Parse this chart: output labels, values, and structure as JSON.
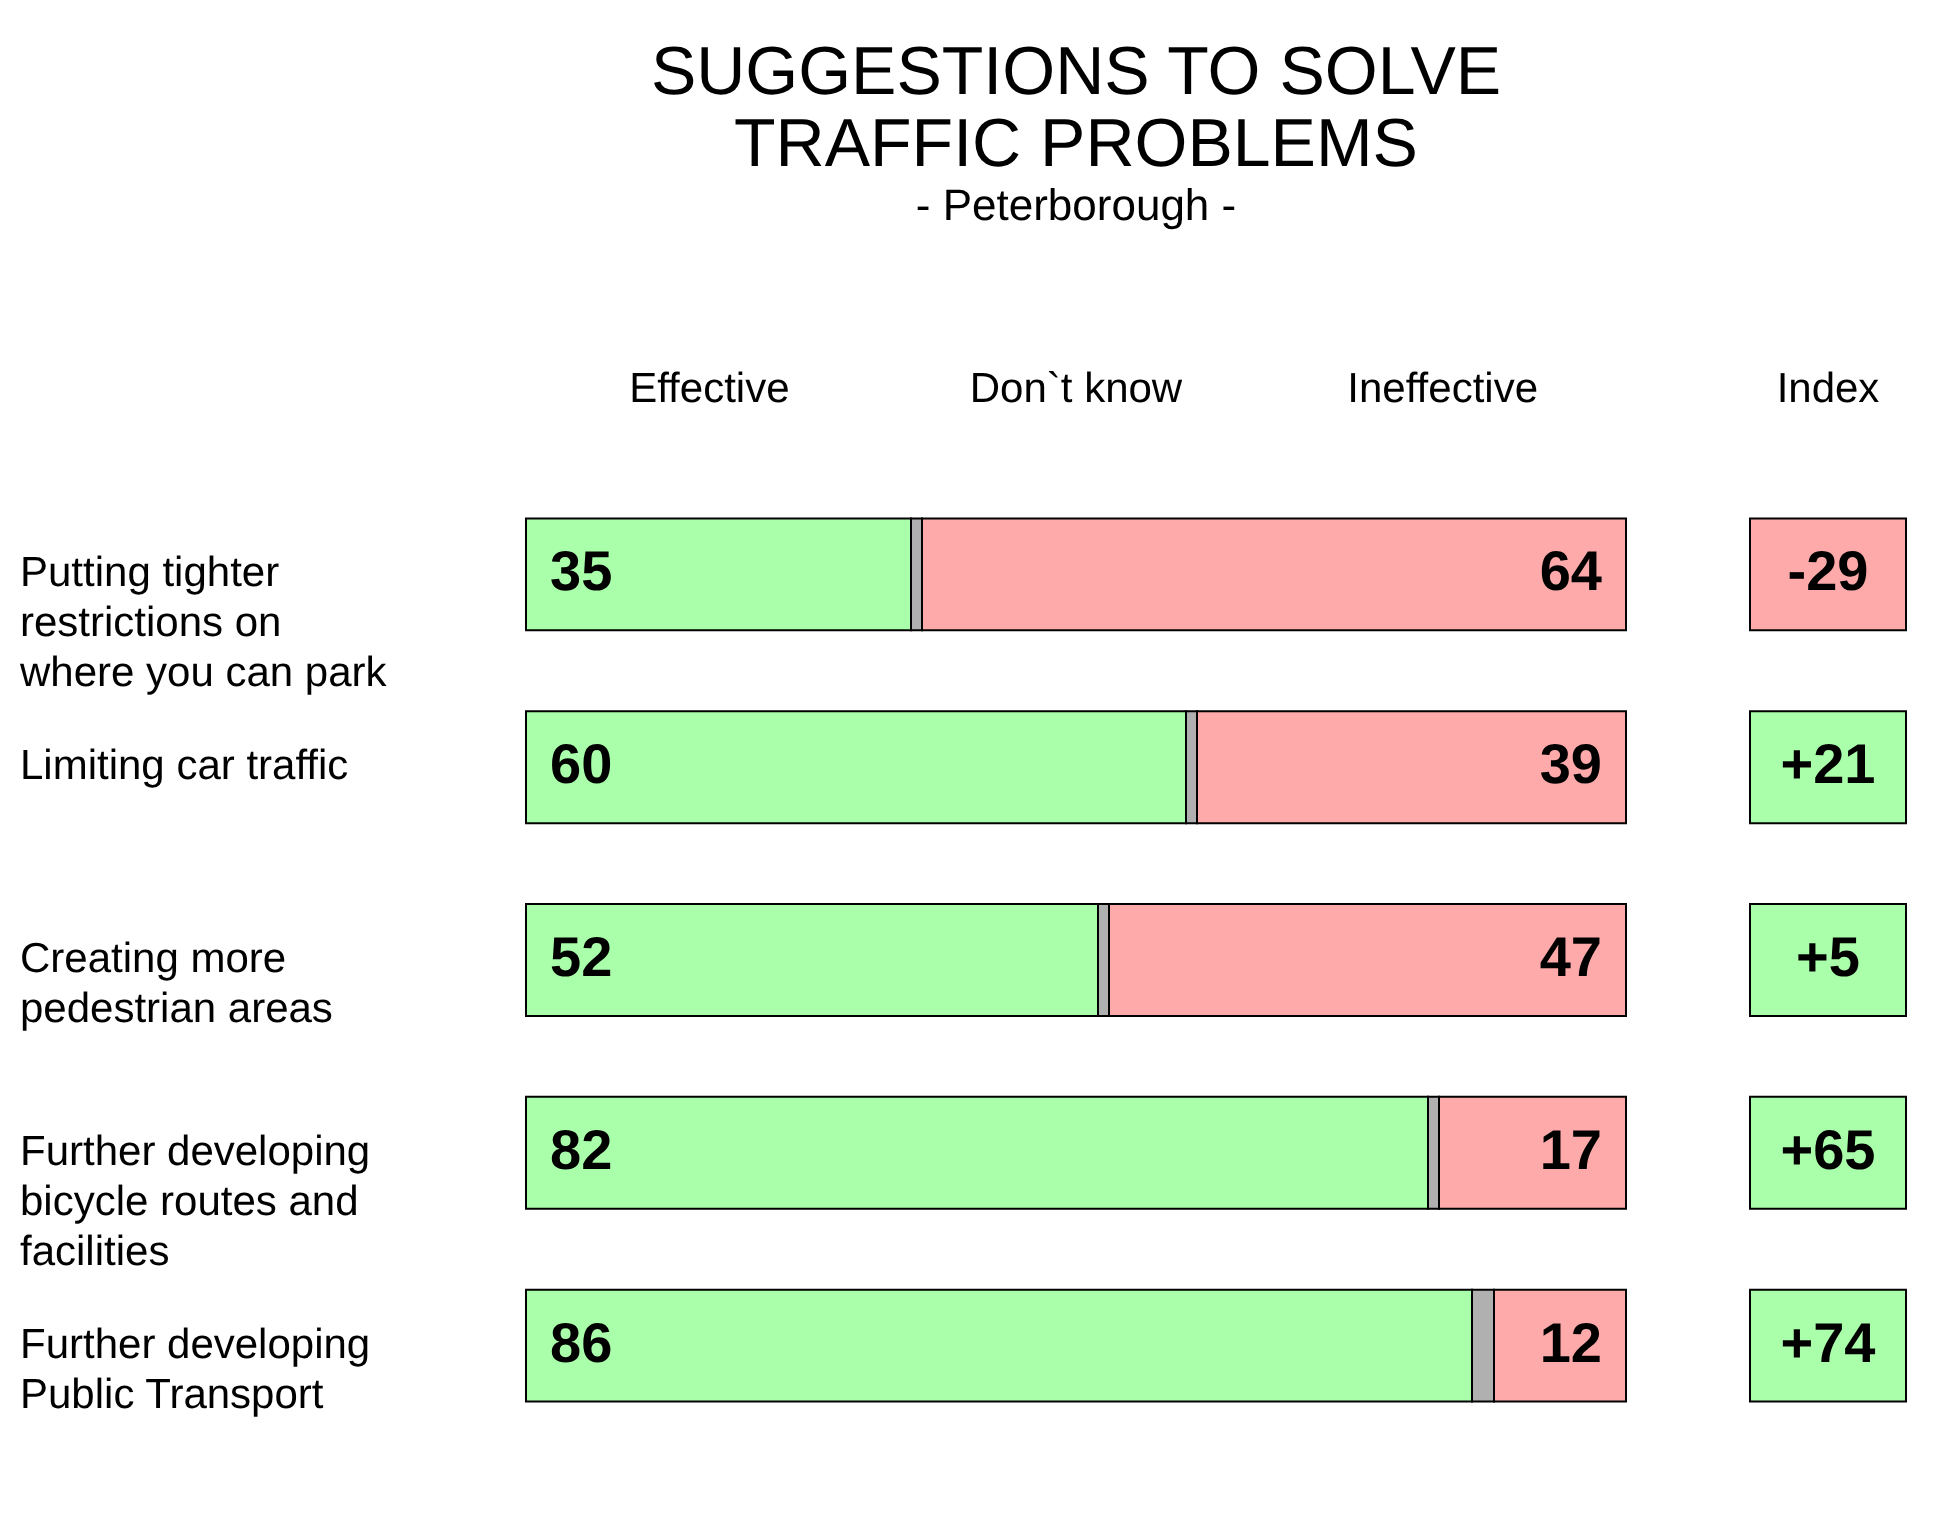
{
  "chart_data": {
    "type": "bar",
    "orientation": "horizontal",
    "stacked": true,
    "title": "SUGGESTIONS TO SOLVE TRAFFIC PROBLEMS",
    "subtitle": "- Peterborough -",
    "categories": [
      "Putting tighter restrictions on where you can park",
      "Limiting car traffic",
      "Creating more pedestrian areas",
      "Further developing bicycle routes and facilities",
      "Further developing Public Transport"
    ],
    "series": [
      {
        "name": "Effective",
        "color": "#aaffaa",
        "values": [
          35,
          60,
          52,
          82,
          86
        ],
        "value_labels": [
          "35",
          "60",
          "52",
          "82",
          "86"
        ]
      },
      {
        "name": "Don`t know",
        "color": "#b0b0b0",
        "values": [
          1,
          1,
          1,
          1,
          2
        ],
        "value_labels": [
          null,
          null,
          null,
          null,
          null
        ]
      },
      {
        "name": "Ineffective",
        "color": "#ffaaaa",
        "values": [
          64,
          39,
          47,
          17,
          12
        ],
        "value_labels": [
          "64",
          "39",
          "47",
          "17",
          "12"
        ]
      }
    ],
    "annotations": [
      "Index",
      "-29",
      "+21",
      "+5",
      "+65",
      "+74"
    ]
  }
}
